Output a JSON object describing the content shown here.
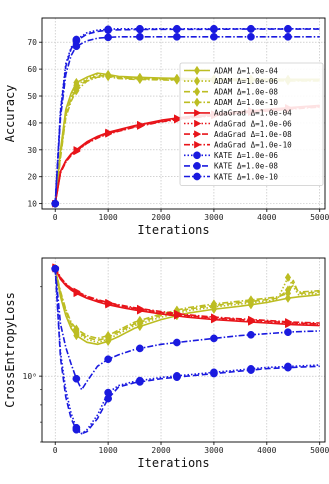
{
  "chart_data": [
    {
      "type": "line",
      "xlabel": "Iterations",
      "ylabel": "Accuracy",
      "xlim": [
        -250,
        5100
      ],
      "ylim": [
        8,
        79
      ],
      "xticks": [
        0,
        1000,
        2000,
        3000,
        4000,
        5000
      ],
      "yticks": [
        10,
        20,
        30,
        40,
        50,
        60,
        70
      ],
      "grid": true,
      "legend_position": "right",
      "series": [
        {
          "name": "ADAM Δ=1.0e-04",
          "color": "#bcbd22",
          "dash": "",
          "marker": "diamond",
          "x": [
            0,
            100,
            200,
            300,
            400,
            600,
            800,
            1000,
            1200,
            1500,
            2000,
            2500,
            3000,
            3500,
            4000,
            4500,
            5000
          ],
          "y": [
            10,
            30,
            45,
            51,
            55,
            57,
            58.5,
            58,
            57.3,
            57,
            56.7,
            56.5,
            56.4,
            56.3,
            56.3,
            56.2,
            56.2
          ]
        },
        {
          "name": "ADAM Δ=1.0e-06",
          "color": "#bcbd22",
          "dash": "1.5 2",
          "marker": "diamond",
          "x": [
            0,
            100,
            200,
            300,
            400,
            600,
            800,
            1000,
            1200,
            1500,
            2000,
            2500,
            3000,
            3500,
            4000,
            4500,
            5000
          ],
          "y": [
            10,
            29,
            44,
            50,
            54,
            56.5,
            58,
            57.7,
            57,
            56.7,
            56.5,
            56.3,
            56.2,
            56.1,
            56.1,
            56,
            56
          ]
        },
        {
          "name": "ADAM Δ=1.0e-08",
          "color": "#bcbd22",
          "dash": "6 3",
          "marker": "diamond",
          "x": [
            0,
            100,
            200,
            300,
            400,
            600,
            800,
            1000,
            1200,
            1500,
            2000,
            2500,
            3000,
            3500,
            4000,
            4500,
            5000
          ],
          "y": [
            10,
            28,
            43,
            49,
            53,
            56,
            57.5,
            57.5,
            56.8,
            56.5,
            56.2,
            56,
            56,
            55.9,
            55.9,
            55.8,
            55.8
          ]
        },
        {
          "name": "ADAM Δ=1.0e-10",
          "color": "#bcbd22",
          "dash": "6 2 1.5 2",
          "marker": "diamond",
          "x": [
            0,
            100,
            200,
            300,
            400,
            600,
            800,
            1000,
            1200,
            1500,
            2000,
            2500,
            3000,
            3500,
            4000,
            4500,
            5000
          ],
          "y": [
            10,
            27,
            42,
            48,
            52,
            55.5,
            57,
            57.2,
            56.5,
            56.2,
            56,
            55.8,
            55.8,
            55.7,
            55.7,
            55.6,
            55.6
          ]
        },
        {
          "name": "AdaGrad Δ=1.0e-04",
          "color": "#e8141a",
          "dash": "",
          "marker": "triangle-right",
          "x": [
            0,
            100,
            200,
            300,
            400,
            600,
            800,
            1000,
            1200,
            1500,
            2000,
            2500,
            3000,
            3500,
            4000,
            4500,
            5000
          ],
          "y": [
            10,
            22,
            26,
            28.5,
            30,
            33,
            35,
            36.5,
            37.5,
            39,
            41,
            42.3,
            43.3,
            44.2,
            45,
            45.8,
            46.5
          ]
        },
        {
          "name": "AdaGrad Δ=1.0e-06",
          "color": "#e8141a",
          "dash": "1.5 2",
          "marker": "triangle-right",
          "x": [
            0,
            100,
            200,
            300,
            400,
            600,
            800,
            1000,
            1200,
            1500,
            2000,
            2500,
            3000,
            3500,
            4000,
            4500,
            5000
          ],
          "y": [
            10,
            21.8,
            25.8,
            28.3,
            29.8,
            32.8,
            34.8,
            36.3,
            37.3,
            38.8,
            40.8,
            42.1,
            43.1,
            44,
            44.8,
            45.6,
            46.3
          ]
        },
        {
          "name": "AdaGrad Δ=1.0e-08",
          "color": "#e8141a",
          "dash": "6 3",
          "marker": "triangle-right",
          "x": [
            0,
            100,
            200,
            300,
            400,
            600,
            800,
            1000,
            1200,
            1500,
            2000,
            2500,
            3000,
            3500,
            4000,
            4500,
            5000
          ],
          "y": [
            10,
            21.6,
            25.6,
            28.1,
            29.6,
            32.6,
            34.6,
            36.1,
            37.1,
            38.6,
            40.6,
            41.9,
            42.9,
            43.8,
            44.6,
            45.4,
            46.1
          ]
        },
        {
          "name": "AdaGrad Δ=1.0e-10",
          "color": "#e8141a",
          "dash": "6 2 1.5 2",
          "marker": "triangle-right",
          "x": [
            0,
            100,
            200,
            300,
            400,
            600,
            800,
            1000,
            1200,
            1500,
            2000,
            2500,
            3000,
            3500,
            4000,
            4500,
            5000
          ],
          "y": [
            10,
            21.4,
            25.4,
            27.9,
            29.4,
            32.4,
            34.4,
            35.9,
            36.9,
            38.4,
            40.4,
            41.7,
            42.7,
            43.6,
            44.4,
            45.2,
            45.9
          ]
        },
        {
          "name": "KATE Δ=1.0e-06",
          "color": "#1a1adf",
          "dash": "1.5 2",
          "marker": "circle",
          "x": [
            0,
            100,
            200,
            300,
            400,
            600,
            800,
            1000,
            1200,
            1500,
            2000,
            2500,
            3000,
            3500,
            4000,
            4500,
            5000
          ],
          "y": [
            10,
            45,
            62,
            68,
            71,
            73.5,
            74.5,
            74.8,
            75,
            75,
            75,
            75,
            75,
            75,
            75,
            75,
            75
          ]
        },
        {
          "name": "KATE Δ=1.0e-08",
          "color": "#1a1adf",
          "dash": "6 3",
          "marker": "circle",
          "x": [
            0,
            100,
            200,
            300,
            400,
            600,
            800,
            1000,
            1200,
            1500,
            2000,
            2500,
            3000,
            3500,
            4000,
            4500,
            5000
          ],
          "y": [
            10,
            44,
            61,
            67.5,
            70.5,
            73,
            74,
            74.5,
            74.6,
            74.7,
            74.8,
            74.8,
            74.8,
            74.9,
            74.9,
            74.9,
            74.9
          ]
        },
        {
          "name": "KATE Δ=1.0e-10",
          "color": "#1a1adf",
          "dash": "6 2 1.5 2",
          "marker": "circle",
          "x": [
            0,
            100,
            200,
            300,
            400,
            600,
            800,
            1000,
            1200,
            1500,
            2000,
            2500,
            3000,
            3500,
            4000,
            4500,
            5000
          ],
          "y": [
            10,
            42,
            58,
            65,
            68.5,
            70.5,
            71.5,
            71.8,
            72,
            72,
            72,
            72,
            72,
            72,
            72,
            72,
            72
          ]
        }
      ]
    },
    {
      "type": "line",
      "xlabel": "Iterations",
      "ylabel": "CrossEntropyLoss",
      "yscale": "log",
      "xlim": [
        -250,
        5100
      ],
      "ylim": [
        0.6,
        2.5
      ],
      "xticks": [
        0,
        1000,
        2000,
        3000,
        4000,
        5000
      ],
      "yticks": [
        1
      ],
      "ytick_labels": [
        "10⁰"
      ],
      "grid": true,
      "series": [
        {
          "name": "ADAM Δ=1.0e-04",
          "color": "#bcbd22",
          "dash": "",
          "marker": "diamond",
          "x": [
            0,
            100,
            200,
            300,
            400,
            600,
            800,
            1000,
            1200,
            1500,
            2000,
            2500,
            3000,
            3500,
            4000,
            4200,
            4400,
            4600,
            5000
          ],
          "y": [
            2.3,
            1.85,
            1.6,
            1.45,
            1.37,
            1.3,
            1.28,
            1.31,
            1.36,
            1.45,
            1.55,
            1.63,
            1.68,
            1.72,
            1.77,
            1.8,
            1.83,
            1.85,
            1.88
          ]
        },
        {
          "name": "ADAM Δ=1.0e-06",
          "color": "#bcbd22",
          "dash": "1.5 2",
          "marker": "diamond",
          "x": [
            0,
            100,
            200,
            300,
            400,
            600,
            800,
            1000,
            1200,
            1500,
            2000,
            2500,
            3000,
            3500,
            4000,
            4200,
            4400,
            4500,
            4600,
            5000
          ],
          "y": [
            2.3,
            1.88,
            1.63,
            1.48,
            1.4,
            1.33,
            1.3,
            1.33,
            1.39,
            1.48,
            1.58,
            1.66,
            1.71,
            1.75,
            1.79,
            1.81,
            2.15,
            2.0,
            1.88,
            1.9
          ]
        },
        {
          "name": "ADAM Δ=1.0e-08",
          "color": "#bcbd22",
          "dash": "6 3",
          "marker": "diamond",
          "x": [
            0,
            100,
            200,
            300,
            400,
            600,
            800,
            1000,
            1200,
            1500,
            2000,
            2500,
            3000,
            3500,
            4000,
            4200,
            4400,
            4500,
            4600,
            5000
          ],
          "y": [
            2.3,
            1.9,
            1.66,
            1.5,
            1.42,
            1.35,
            1.32,
            1.35,
            1.41,
            1.5,
            1.6,
            1.68,
            1.73,
            1.77,
            1.81,
            1.83,
            1.95,
            2.1,
            1.9,
            1.92
          ]
        },
        {
          "name": "ADAM Δ=1.0e-10",
          "color": "#bcbd22",
          "dash": "6 2 1.5 2",
          "marker": "diamond",
          "x": [
            0,
            100,
            200,
            300,
            400,
            600,
            800,
            1000,
            1200,
            1500,
            2000,
            2500,
            3000,
            3500,
            4000,
            4200,
            4400,
            4500,
            4600,
            5000
          ],
          "y": [
            2.3,
            1.93,
            1.68,
            1.52,
            1.44,
            1.37,
            1.34,
            1.37,
            1.43,
            1.52,
            1.62,
            1.7,
            1.75,
            1.79,
            1.83,
            1.85,
            1.9,
            2.05,
            1.92,
            1.94
          ]
        },
        {
          "name": "AdaGrad Δ=1.0e-04",
          "color": "#e8141a",
          "dash": "",
          "marker": "triangle-right",
          "x": [
            0,
            100,
            200,
            300,
            400,
            600,
            800,
            1000,
            1200,
            1500,
            2000,
            2500,
            3000,
            3500,
            4000,
            4500,
            5000
          ],
          "y": [
            2.3,
            2.12,
            2.02,
            1.95,
            1.9,
            1.83,
            1.78,
            1.74,
            1.71,
            1.67,
            1.62,
            1.58,
            1.55,
            1.53,
            1.51,
            1.49,
            1.48
          ]
        },
        {
          "name": "AdaGrad Δ=1.0e-06",
          "color": "#e8141a",
          "dash": "1.5 2",
          "marker": "triangle-right",
          "x": [
            0,
            100,
            200,
            300,
            400,
            600,
            800,
            1000,
            1200,
            1500,
            2000,
            2500,
            3000,
            3500,
            4000,
            4500,
            5000
          ],
          "y": [
            2.31,
            2.13,
            2.03,
            1.96,
            1.91,
            1.84,
            1.79,
            1.75,
            1.72,
            1.68,
            1.63,
            1.59,
            1.56,
            1.54,
            1.52,
            1.5,
            1.49
          ]
        },
        {
          "name": "AdaGrad Δ=1.0e-08",
          "color": "#e8141a",
          "dash": "6 3",
          "marker": "triangle-right",
          "x": [
            0,
            100,
            200,
            300,
            400,
            600,
            800,
            1000,
            1200,
            1500,
            2000,
            2500,
            3000,
            3500,
            4000,
            4500,
            5000
          ],
          "y": [
            2.32,
            2.14,
            2.04,
            1.97,
            1.92,
            1.85,
            1.8,
            1.76,
            1.73,
            1.69,
            1.64,
            1.6,
            1.57,
            1.55,
            1.53,
            1.51,
            1.5
          ]
        },
        {
          "name": "AdaGrad Δ=1.0e-10",
          "color": "#e8141a",
          "dash": "6 2 1.5 2",
          "marker": "triangle-right",
          "x": [
            0,
            100,
            200,
            300,
            400,
            600,
            800,
            1000,
            1200,
            1500,
            2000,
            2500,
            3000,
            3500,
            4000,
            4500,
            5000
          ],
          "y": [
            2.33,
            2.15,
            2.05,
            1.98,
            1.93,
            1.86,
            1.81,
            1.77,
            1.74,
            1.7,
            1.65,
            1.61,
            1.58,
            1.56,
            1.54,
            1.52,
            1.51
          ]
        },
        {
          "name": "KATE Δ=1.0e-06",
          "color": "#1a1adf",
          "dash": "1.5 2",
          "marker": "circle",
          "x": [
            0,
            100,
            200,
            300,
            400,
            500,
            600,
            800,
            1000,
            1200,
            1500,
            2000,
            2500,
            3000,
            3500,
            4000,
            4500,
            5000
          ],
          "y": [
            2.3,
            1.2,
            0.9,
            0.75,
            0.67,
            0.64,
            0.66,
            0.74,
            0.88,
            0.93,
            0.96,
            0.99,
            1.01,
            1.03,
            1.05,
            1.07,
            1.08,
            1.09
          ]
        },
        {
          "name": "KATE Δ=1.0e-08",
          "color": "#1a1adf",
          "dash": "6 3",
          "marker": "circle",
          "x": [
            0,
            100,
            200,
            300,
            400,
            500,
            600,
            800,
            1000,
            1200,
            1500,
            2000,
            2500,
            3000,
            3500,
            4000,
            4500,
            5000
          ],
          "y": [
            2.3,
            1.15,
            0.85,
            0.72,
            0.66,
            0.64,
            0.65,
            0.72,
            0.84,
            0.92,
            0.95,
            0.98,
            1.0,
            1.02,
            1.04,
            1.06,
            1.07,
            1.08
          ]
        },
        {
          "name": "KATE Δ=1.0e-10",
          "color": "#1a1adf",
          "dash": "6 2 1.5 2",
          "marker": "circle",
          "x": [
            0,
            100,
            200,
            300,
            400,
            500,
            600,
            800,
            1000,
            1200,
            1500,
            2000,
            2500,
            3000,
            3500,
            4000,
            4500,
            5000
          ],
          "y": [
            2.3,
            1.5,
            1.25,
            1.1,
            0.98,
            0.9,
            0.96,
            1.08,
            1.14,
            1.18,
            1.23,
            1.28,
            1.31,
            1.34,
            1.37,
            1.39,
            1.41,
            1.42
          ]
        }
      ]
    }
  ]
}
